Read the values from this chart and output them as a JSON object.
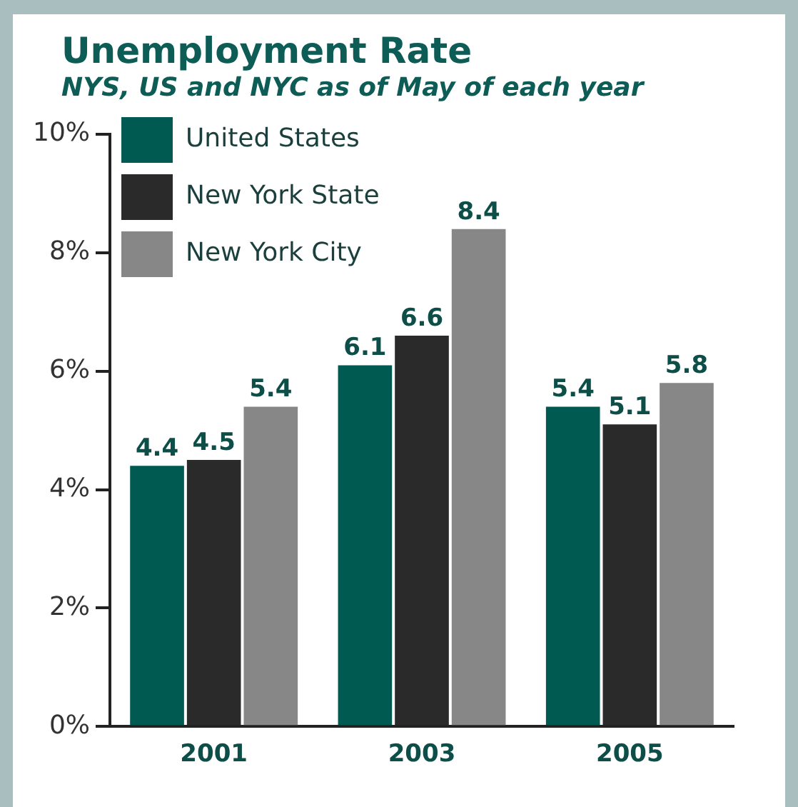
{
  "chart_data": {
    "type": "bar",
    "title": "Unemployment Rate",
    "subtitle": "NYS, US and NYC as of May of each year",
    "categories": [
      "2001",
      "2003",
      "2005"
    ],
    "series": [
      {
        "name": "United States",
        "color": "#005a52",
        "values": [
          4.4,
          6.1,
          5.4
        ]
      },
      {
        "name": "New York State",
        "color": "#2a2a2a",
        "values": [
          4.5,
          6.6,
          5.1
        ]
      },
      {
        "name": "New York City",
        "color": "#878787",
        "values": [
          5.4,
          8.4,
          5.8
        ]
      }
    ],
    "ylim": [
      0,
      10
    ],
    "yticks": [
      {
        "value": 0,
        "label": "0%"
      },
      {
        "value": 2,
        "label": "2%"
      },
      {
        "value": 4,
        "label": "4%"
      },
      {
        "value": 6,
        "label": "6%"
      },
      {
        "value": 8,
        "label": "8%"
      },
      {
        "value": 10,
        "label": "10%"
      }
    ],
    "grid": false,
    "legend": "top left",
    "data_labels": true
  }
}
